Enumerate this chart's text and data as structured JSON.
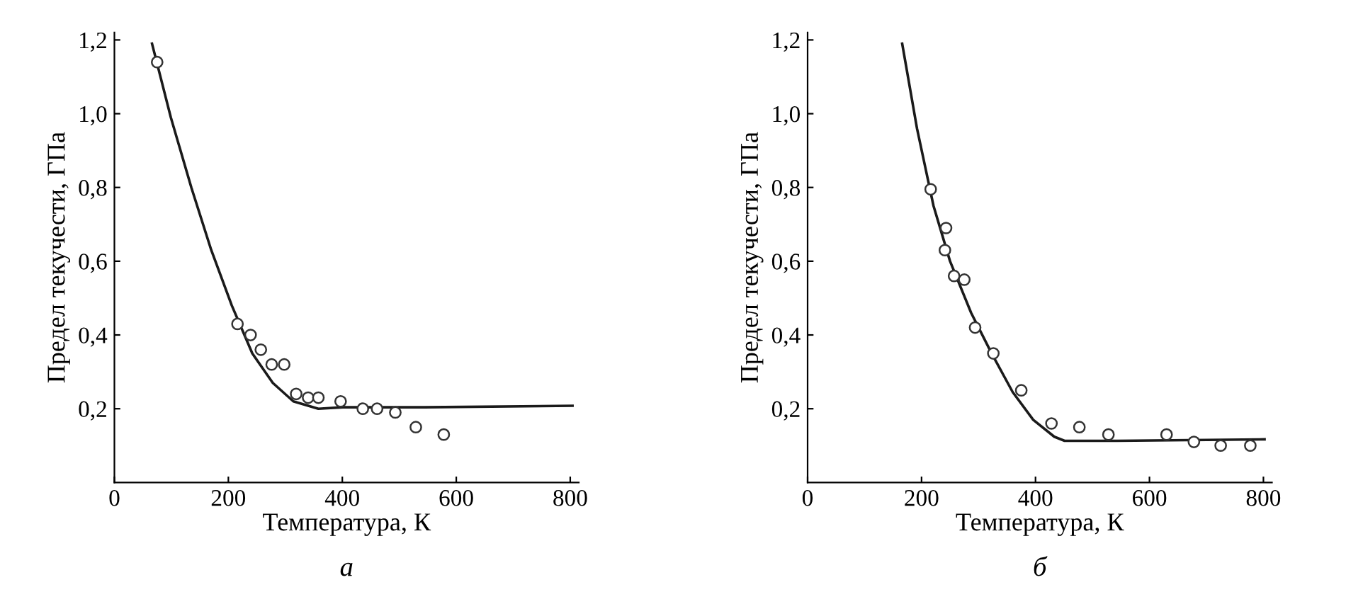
{
  "chart_data": [
    {
      "type": "scatter",
      "xlabel": "Температура, К",
      "ylabel": "Предел текучести, ГПа",
      "annotations": [
        "а"
      ],
      "xlim": [
        0,
        815
      ],
      "ylim": [
        0,
        1.22
      ],
      "xticks": [
        0,
        200,
        400,
        600,
        800
      ],
      "yticks": [
        {
          "value": 0.2,
          "label": "0,2"
        },
        {
          "value": 0.4,
          "label": "0,4"
        },
        {
          "value": 0.6,
          "label": "0,6"
        },
        {
          "value": 0.8,
          "label": "0,8"
        },
        {
          "value": 1.0,
          "label": "1,0"
        },
        {
          "value": 1.2,
          "label": "1,2"
        }
      ],
      "grid": false,
      "legend": false,
      "series": [
        {
          "type": "line",
          "color": "#1a1a1a",
          "line_style": "solid",
          "marker": "none",
          "x": [
            66,
            99,
            135,
            170,
            206,
            242,
            278,
            314,
            358,
            401,
            545,
            804
          ],
          "values": [
            1.19,
            0.99,
            0.8,
            0.63,
            0.48,
            0.35,
            0.27,
            0.22,
            0.2,
            0.204,
            0.204,
            0.208
          ]
        },
        {
          "color": "#333333",
          "marker": "circle",
          "x": [
            75,
            216,
            239,
            257,
            276,
            298,
            319,
            340,
            358,
            397,
            436,
            461,
            493,
            529,
            578
          ],
          "values": [
            1.14,
            0.43,
            0.4,
            0.36,
            0.32,
            0.32,
            0.24,
            0.23,
            0.23,
            0.22,
            0.2,
            0.2,
            0.19,
            0.15,
            0.13
          ]
        }
      ]
    },
    {
      "type": "scatter",
      "xlabel": "Температура, К",
      "ylabel": "Предел текучести, ГПа",
      "annotations": [
        "б"
      ],
      "xlim": [
        0,
        815
      ],
      "ylim": [
        0,
        1.22
      ],
      "xticks": [
        0,
        200,
        400,
        600,
        800
      ],
      "yticks": [
        {
          "value": 0.2,
          "label": "0,2"
        },
        {
          "value": 0.4,
          "label": "0,4"
        },
        {
          "value": 0.6,
          "label": "0,6"
        },
        {
          "value": 0.8,
          "label": "0,8"
        },
        {
          "value": 1.0,
          "label": "1,0"
        },
        {
          "value": 1.2,
          "label": "1,2"
        }
      ],
      "grid": false,
      "legend": false,
      "series": [
        {
          "type": "line",
          "color": "#1a1a1a",
          "line_style": "solid",
          "marker": "none",
          "x": [
            166,
            192,
            221,
            250,
            287,
            323,
            360,
            396,
            433,
            451,
            543,
            802
          ],
          "values": [
            1.19,
            0.96,
            0.75,
            0.6,
            0.46,
            0.35,
            0.245,
            0.17,
            0.124,
            0.113,
            0.113,
            0.117
          ]
        },
        {
          "color": "#333333",
          "marker": "circle",
          "x": [
            216,
            243,
            241,
            257,
            275,
            294,
            326,
            375,
            428,
            477,
            528,
            630,
            678,
            725,
            777
          ],
          "values": [
            0.795,
            0.69,
            0.63,
            0.56,
            0.55,
            0.42,
            0.35,
            0.25,
            0.16,
            0.15,
            0.13,
            0.13,
            0.11,
            0.1,
            0.1
          ]
        }
      ]
    }
  ]
}
